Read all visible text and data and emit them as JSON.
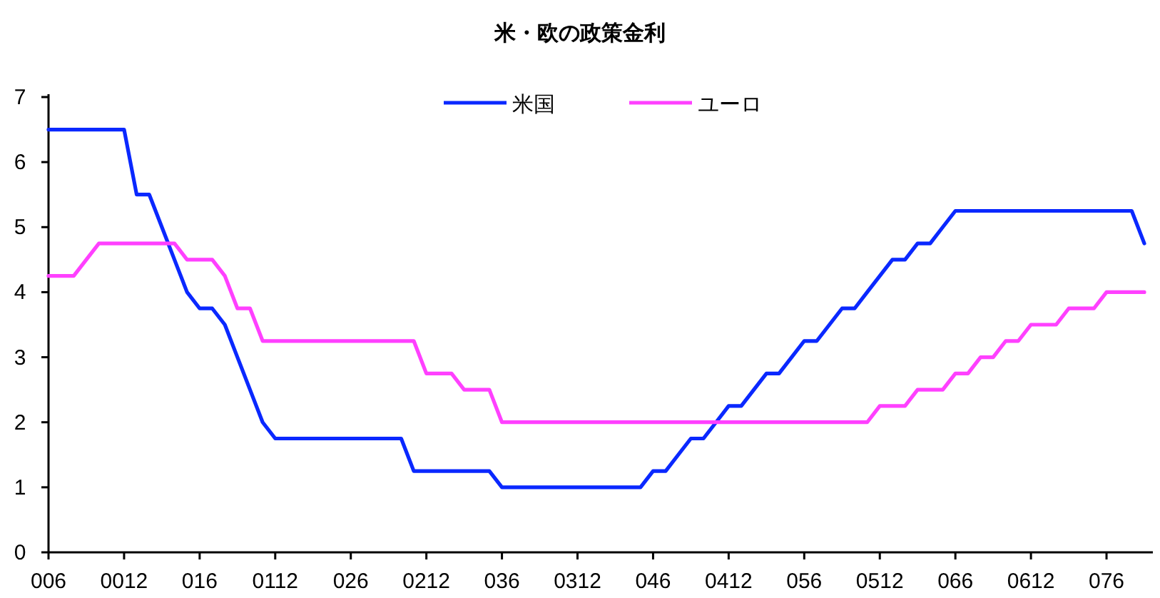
{
  "chart_data": {
    "type": "line",
    "title": "米・欧の政策金利",
    "categories": [
      "006",
      null,
      null,
      null,
      null,
      null,
      "0012",
      null,
      null,
      null,
      null,
      null,
      "016",
      null,
      null,
      null,
      null,
      null,
      "0112",
      null,
      null,
      null,
      null,
      null,
      "026",
      null,
      null,
      null,
      null,
      null,
      "0212",
      null,
      null,
      null,
      null,
      null,
      "036",
      null,
      null,
      null,
      null,
      null,
      "0312",
      null,
      null,
      null,
      null,
      null,
      "046",
      null,
      null,
      null,
      null,
      null,
      "0412",
      null,
      null,
      null,
      null,
      null,
      "056",
      null,
      null,
      null,
      null,
      null,
      "0512",
      null,
      null,
      null,
      null,
      null,
      "066",
      null,
      null,
      null,
      null,
      null,
      "0612",
      null,
      null,
      null,
      null,
      null,
      "076",
      null,
      null,
      null
    ],
    "series": [
      {
        "name": "米国",
        "color": "#0a28ff",
        "values": [
          6.5,
          6.5,
          6.5,
          6.5,
          6.5,
          6.5,
          6.5,
          5.5,
          5.5,
          5.0,
          4.5,
          4.0,
          3.75,
          3.75,
          3.5,
          3.0,
          2.5,
          2.0,
          1.75,
          1.75,
          1.75,
          1.75,
          1.75,
          1.75,
          1.75,
          1.75,
          1.75,
          1.75,
          1.75,
          1.25,
          1.25,
          1.25,
          1.25,
          1.25,
          1.25,
          1.25,
          1.0,
          1.0,
          1.0,
          1.0,
          1.0,
          1.0,
          1.0,
          1.0,
          1.0,
          1.0,
          1.0,
          1.0,
          1.25,
          1.25,
          1.5,
          1.75,
          1.75,
          2.0,
          2.25,
          2.25,
          2.5,
          2.75,
          2.75,
          3.0,
          3.25,
          3.25,
          3.5,
          3.75,
          3.75,
          4.0,
          4.25,
          4.5,
          4.5,
          4.75,
          4.75,
          5.0,
          5.25,
          5.25,
          5.25,
          5.25,
          5.25,
          5.25,
          5.25,
          5.25,
          5.25,
          5.25,
          5.25,
          5.25,
          5.25,
          5.25,
          5.25,
          4.75
        ]
      },
      {
        "name": "ユーロ",
        "color": "#ff40ff",
        "values": [
          4.25,
          4.25,
          4.25,
          4.5,
          4.75,
          4.75,
          4.75,
          4.75,
          4.75,
          4.75,
          4.75,
          4.5,
          4.5,
          4.5,
          4.25,
          3.75,
          3.75,
          3.25,
          3.25,
          3.25,
          3.25,
          3.25,
          3.25,
          3.25,
          3.25,
          3.25,
          3.25,
          3.25,
          3.25,
          3.25,
          2.75,
          2.75,
          2.75,
          2.5,
          2.5,
          2.5,
          2.0,
          2.0,
          2.0,
          2.0,
          2.0,
          2.0,
          2.0,
          2.0,
          2.0,
          2.0,
          2.0,
          2.0,
          2.0,
          2.0,
          2.0,
          2.0,
          2.0,
          2.0,
          2.0,
          2.0,
          2.0,
          2.0,
          2.0,
          2.0,
          2.0,
          2.0,
          2.0,
          2.0,
          2.0,
          2.0,
          2.25,
          2.25,
          2.25,
          2.5,
          2.5,
          2.5,
          2.75,
          2.75,
          3.0,
          3.0,
          3.25,
          3.25,
          3.5,
          3.5,
          3.5,
          3.75,
          3.75,
          3.75,
          4.0,
          4.0,
          4.0,
          4.0
        ]
      }
    ],
    "ylim": [
      0,
      7
    ],
    "yticks": [
      0,
      1,
      2,
      3,
      4,
      5,
      6,
      7
    ],
    "grid": false,
    "legend": "top",
    "line_style": "solid"
  }
}
